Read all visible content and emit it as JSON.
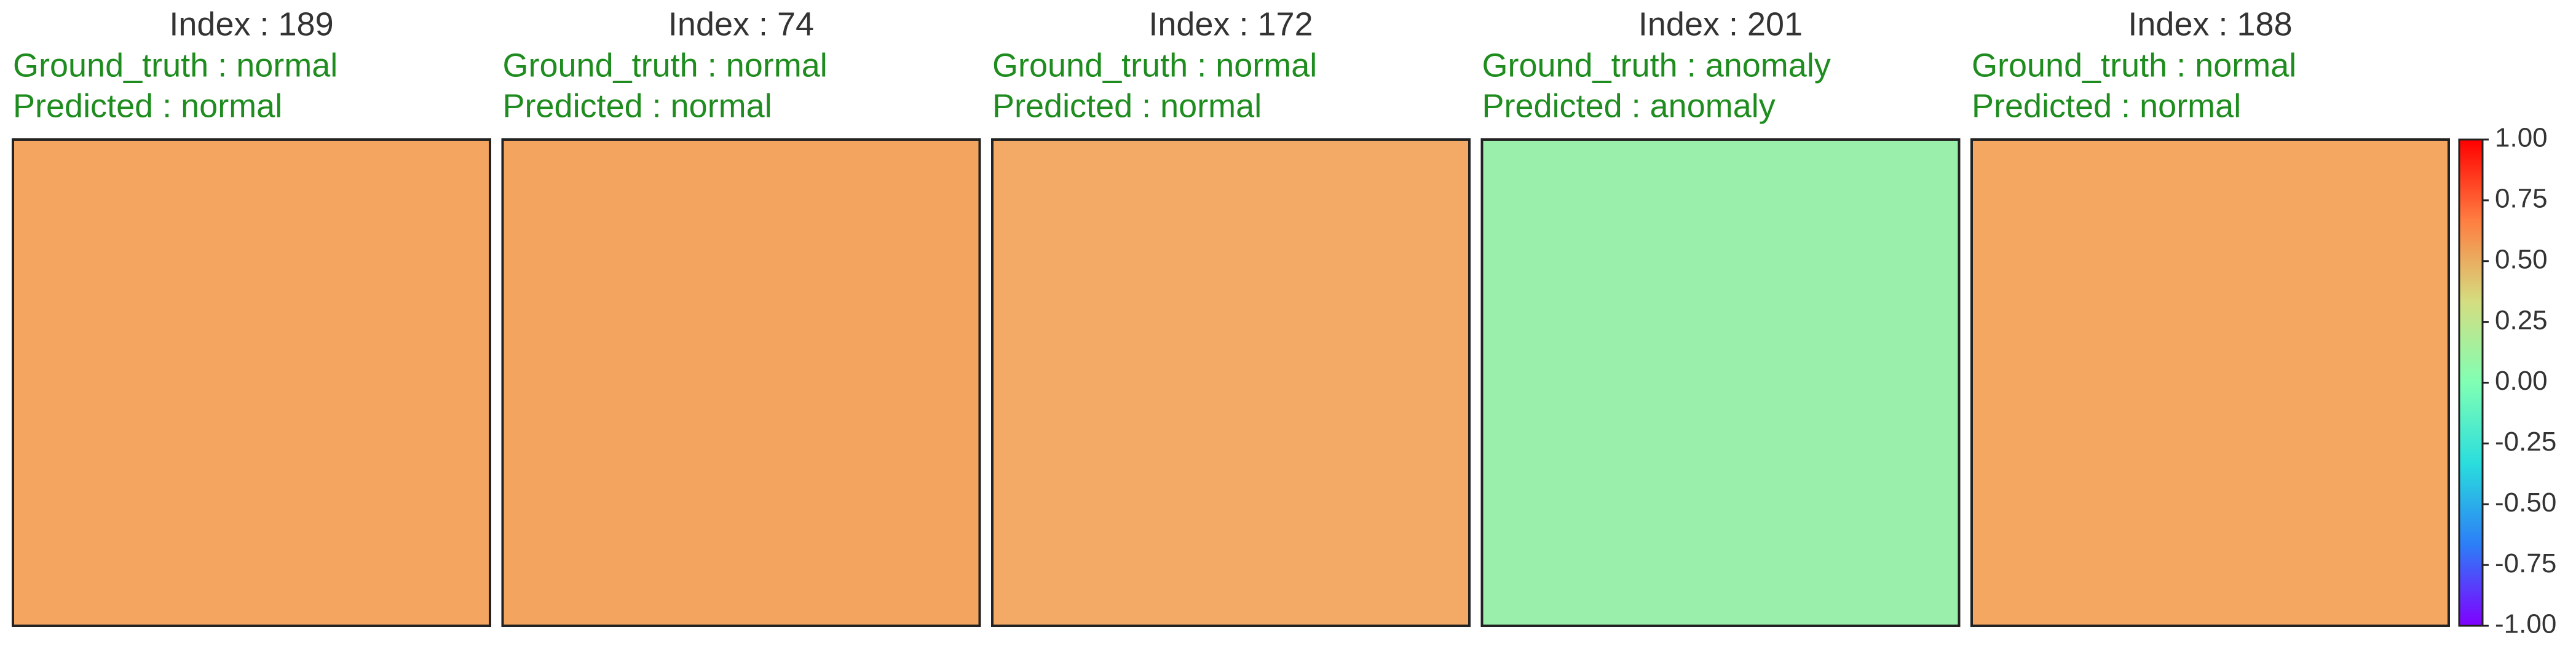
{
  "chart_data": [
    {
      "type": "heatmap",
      "title": "Index : 189",
      "ground_truth": "Ground_truth : normal",
      "predicted": "Predicted : normal",
      "color": "#f4a660"
    },
    {
      "type": "heatmap",
      "title": "Index : 74",
      "ground_truth": "Ground_truth : normal",
      "predicted": "Predicted : normal",
      "color": "#f3a45e"
    },
    {
      "type": "heatmap",
      "title": "Index : 172",
      "ground_truth": "Ground_truth : normal",
      "predicted": "Predicted : normal",
      "color": "#f2aa66"
    },
    {
      "type": "heatmap",
      "title": "Index : 201",
      "ground_truth": "Ground_truth : anomaly",
      "predicted": "Predicted : anomaly",
      "color": "#9aefaa"
    },
    {
      "type": "heatmap",
      "title": "Index : 188",
      "ground_truth": "Ground_truth : normal",
      "predicted": "Predicted : normal",
      "color": "#f3a761"
    },
    {
      "type": "colorbar",
      "lim": [
        -1,
        1
      ],
      "ticks": [
        {
          "value": 1,
          "label": "1.00"
        },
        {
          "value": 0.75,
          "label": "0.75"
        },
        {
          "value": 0.5,
          "label": "0.50"
        },
        {
          "value": 0.25,
          "label": "0.25"
        },
        {
          "value": 0,
          "label": "0.00"
        },
        {
          "value": -0.25,
          "label": "-0.25"
        },
        {
          "value": -0.5,
          "label": "-0.50"
        },
        {
          "value": -0.75,
          "label": "-0.75"
        },
        {
          "value": -1,
          "label": "-1.00"
        }
      ],
      "colors": [
        "#8000ff",
        "#2c7ef7",
        "#2adddd",
        "#80ffb4",
        "#d4dd80",
        "#ff7e41",
        "#ff0000"
      ]
    }
  ]
}
